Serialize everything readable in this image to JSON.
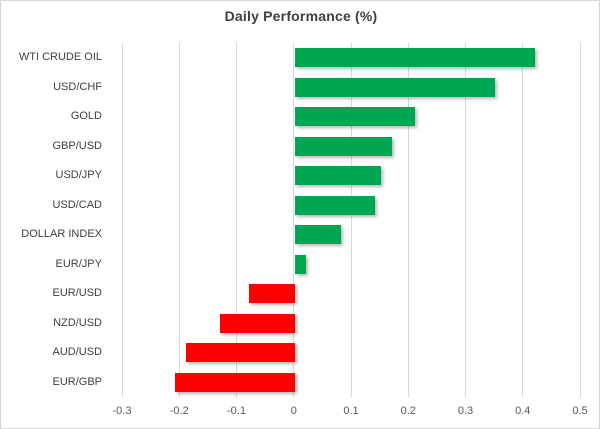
{
  "chart_data": {
    "type": "bar",
    "orientation": "horizontal",
    "title": "Daily Performance (%)",
    "categories": [
      "WTI CRUDE OIL",
      "USD/CHF",
      "GOLD",
      "GBP/USD",
      "USD/JPY",
      "USD/CAD",
      "DOLLAR INDEX",
      "EUR/JPY",
      "EUR/USD",
      "NZD/USD",
      "AUD/USD",
      "EUR/GBP"
    ],
    "values": [
      0.42,
      0.35,
      0.21,
      0.17,
      0.15,
      0.14,
      0.08,
      0.02,
      -0.08,
      -0.13,
      -0.19,
      -0.21
    ],
    "xlabel": "",
    "ylabel": "",
    "xlim": [
      -0.3,
      0.5
    ],
    "x_ticks": [
      -0.3,
      -0.2,
      -0.1,
      0,
      0.1,
      0.2,
      0.3,
      0.4,
      0.5
    ],
    "x_tick_labels": [
      "-0.3",
      "-0.2",
      "-0.1",
      "0",
      "0.1",
      "0.2",
      "0.3",
      "0.4",
      "0.5"
    ],
    "grid": true,
    "legend": "none",
    "colors": {
      "positive": "#00A651",
      "negative": "#FF0000",
      "gridline": "#D9D9D9",
      "title_text": "#3F3F3F",
      "label_text": "#404040",
      "tick_text": "#595959",
      "background": "#FFFFFF",
      "border": "#D6D6D6"
    }
  }
}
